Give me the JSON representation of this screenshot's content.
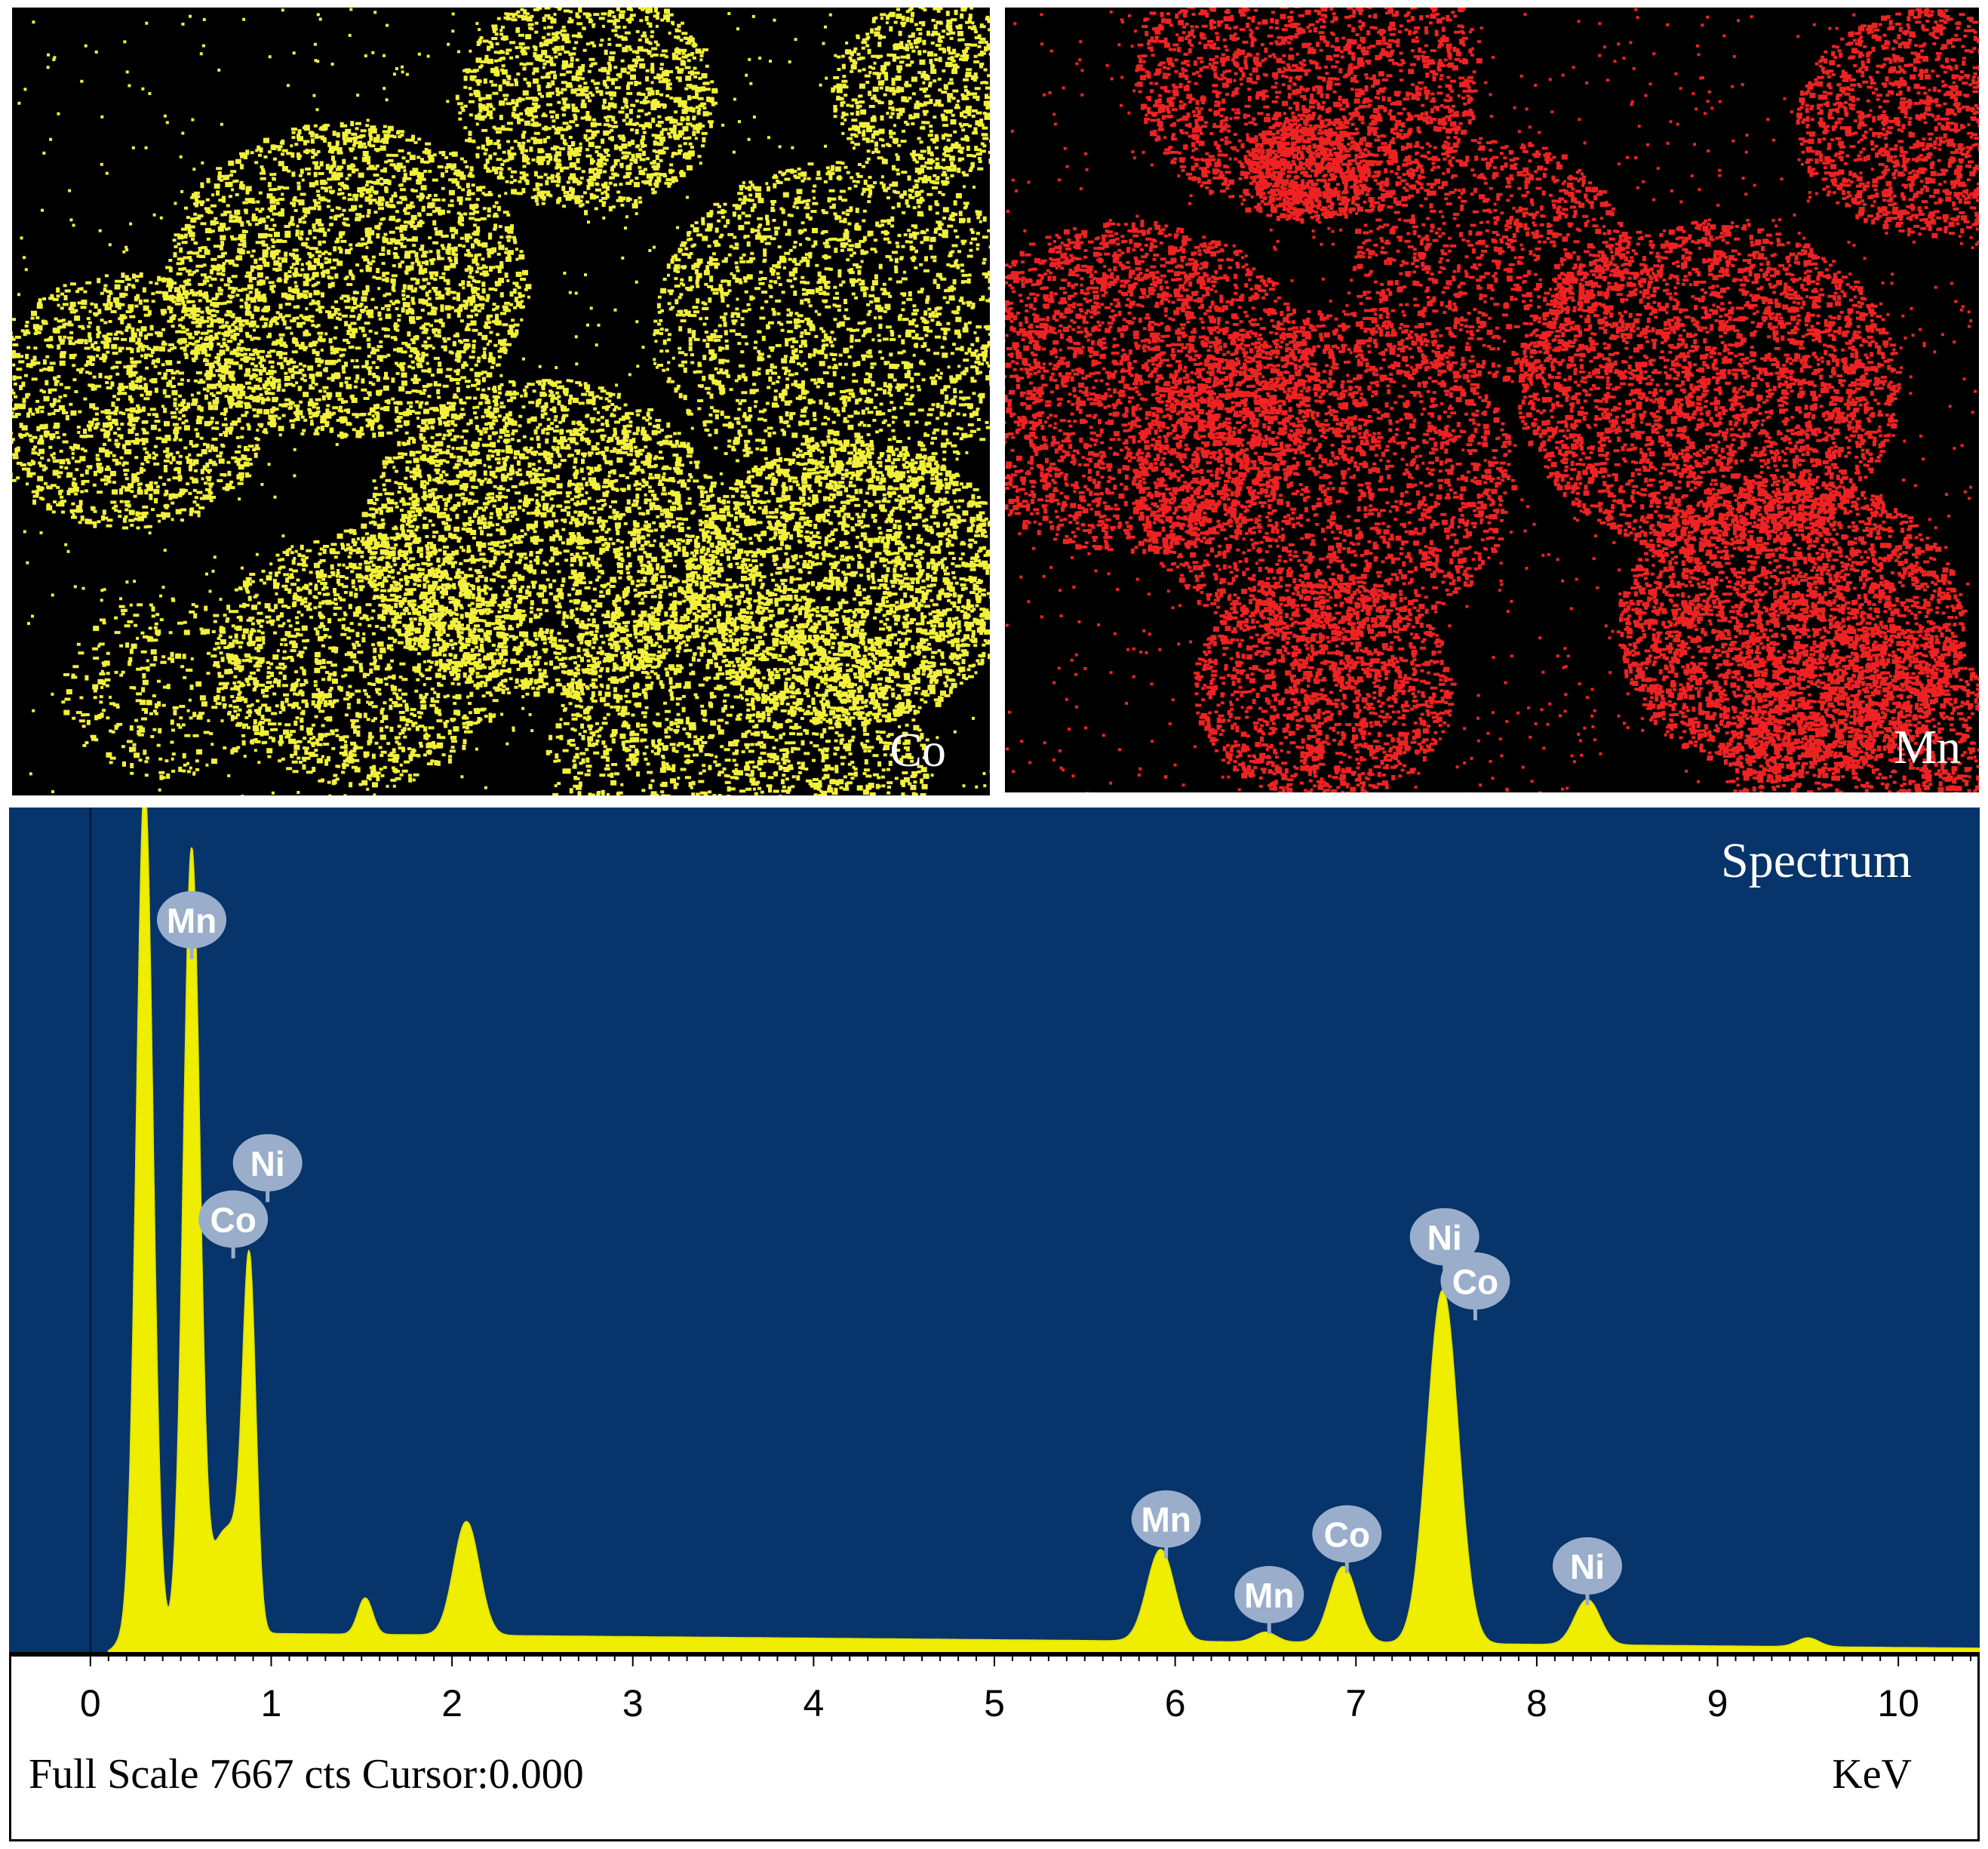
{
  "maps": [
    {
      "element": "Co",
      "color": "#f2f03a"
    },
    {
      "element": "Mn",
      "color": "#ee2222"
    }
  ],
  "spectrum": {
    "title": "Spectrum",
    "status_text": "Full Scale 7667 cts Cursor:0.000",
    "x_unit": "KeV",
    "background_color": "#06346b",
    "fill_color": "#f0ee00",
    "peak_label_color": "#9aaecb"
  },
  "chart_data": {
    "type": "area",
    "title": "Spectrum",
    "xlabel": "KeV",
    "ylabel": "",
    "xlim": [
      -0.45,
      10.45
    ],
    "ylim": [
      0,
      7667
    ],
    "x_ticks": [
      0,
      1,
      2,
      3,
      4,
      5,
      6,
      7,
      8,
      9,
      10
    ],
    "full_scale_cts": 7667,
    "cursor": "0.000",
    "background_level": 140,
    "peaks": [
      {
        "x": 0.3,
        "counts": 7667,
        "width": 0.045
      },
      {
        "x": 0.56,
        "counts": 7100,
        "width": 0.045
      },
      {
        "x": 0.7,
        "counts": 580,
        "width": 0.05
      },
      {
        "x": 0.8,
        "counts": 850,
        "width": 0.06
      },
      {
        "x": 0.88,
        "counts": 3100,
        "width": 0.035
      },
      {
        "x": 1.52,
        "counts": 330,
        "width": 0.04
      },
      {
        "x": 2.08,
        "counts": 1030,
        "width": 0.07
      },
      {
        "x": 5.92,
        "counts": 830,
        "width": 0.075
      },
      {
        "x": 6.5,
        "counts": 90,
        "width": 0.06
      },
      {
        "x": 6.93,
        "counts": 690,
        "width": 0.075
      },
      {
        "x": 7.48,
        "counts": 3200,
        "width": 0.085
      },
      {
        "x": 8.28,
        "counts": 410,
        "width": 0.07
      },
      {
        "x": 9.5,
        "counts": 80,
        "width": 0.06
      }
    ],
    "peak_labels": [
      {
        "label": "Mn",
        "x": 0.56,
        "counts": 6650
      },
      {
        "label": "Ni",
        "x": 0.98,
        "counts": 4450
      },
      {
        "label": "Co",
        "x": 0.79,
        "counts": 3940
      },
      {
        "label": "Mn",
        "x": 5.95,
        "counts": 1225
      },
      {
        "label": "Mn",
        "x": 6.52,
        "counts": 540
      },
      {
        "label": "Co",
        "x": 6.95,
        "counts": 1090
      },
      {
        "label": "Ni",
        "x": 7.49,
        "counts": 3780
      },
      {
        "label": "Co",
        "x": 7.66,
        "counts": 3380
      },
      {
        "label": "Ni",
        "x": 8.28,
        "counts": 800
      }
    ]
  }
}
